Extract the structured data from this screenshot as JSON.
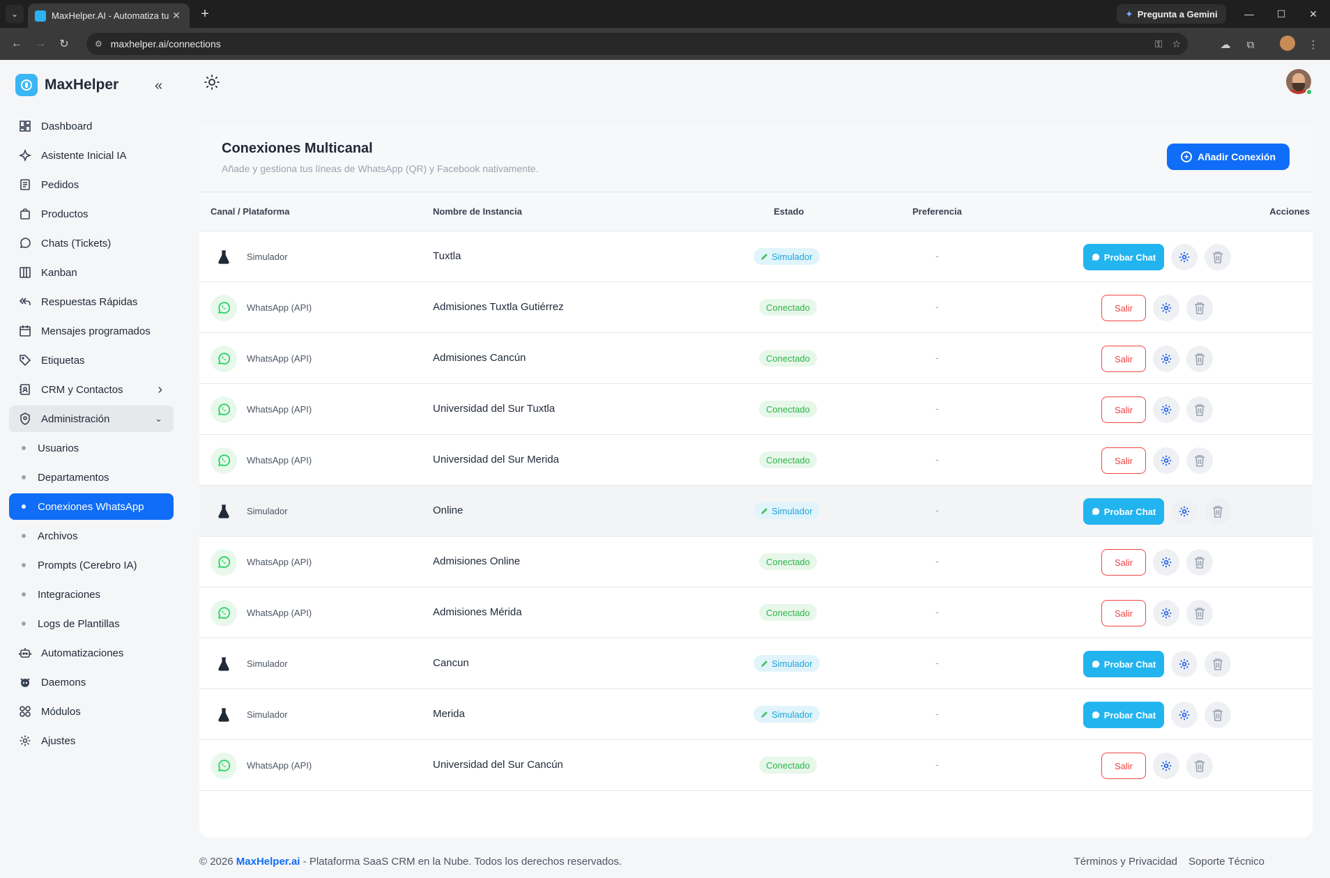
{
  "browser": {
    "tab_title": "MaxHelper.AI - Automatiza tu n",
    "gemini_label": "Pregunta a Gemini",
    "url": "maxhelper.ai/connections"
  },
  "sidebar": {
    "brand": "MaxHelper",
    "items": [
      {
        "label": "Dashboard",
        "icon": "dashboard-icon"
      },
      {
        "label": "Asistente Inicial IA",
        "icon": "sparkle-icon"
      },
      {
        "label": "Pedidos",
        "icon": "document-icon"
      },
      {
        "label": "Productos",
        "icon": "bag-icon"
      },
      {
        "label": "Chats (Tickets)",
        "icon": "whatsapp-icon"
      },
      {
        "label": "Kanban",
        "icon": "kanban-icon"
      },
      {
        "label": "Respuestas Rápidas",
        "icon": "reply-all-icon"
      },
      {
        "label": "Mensajes programados",
        "icon": "calendar-icon"
      },
      {
        "label": "Etiquetas",
        "icon": "tag-icon"
      },
      {
        "label": "CRM y Contactos",
        "icon": "contacts-icon"
      },
      {
        "label": "Administración",
        "icon": "shield-user-icon"
      }
    ],
    "admin_sub": [
      "Usuarios",
      "Departamentos",
      "Conexiones WhatsApp",
      "Archivos",
      "Prompts (Cerebro IA)",
      "Integraciones",
      "Logs de Plantillas"
    ],
    "bottom_items": [
      {
        "label": "Automatizaciones",
        "icon": "robot-icon"
      },
      {
        "label": "Daemons",
        "icon": "daemon-icon"
      },
      {
        "label": "Módulos",
        "icon": "modules-icon"
      },
      {
        "label": "Ajustes",
        "icon": "gear-icon"
      }
    ]
  },
  "page": {
    "title": "Conexiones Multicanal",
    "subtitle": "Añade y gestiona tus líneas de WhatsApp (QR) y Facebook nativamente.",
    "add_button": "Añadir Conexión"
  },
  "table": {
    "headers": {
      "canal": "Canal / Plataforma",
      "nombre": "Nombre de Instancia",
      "estado": "Estado",
      "preferencia": "Preferencia",
      "acciones": "Acciones"
    },
    "rows": [
      {
        "platform": "Simulador",
        "type": "sim",
        "name": "Tuxtla",
        "status": "Simulador",
        "pref": "-",
        "action": "Probar Chat"
      },
      {
        "platform": "WhatsApp (API)",
        "type": "wa",
        "name": "Admisiones Tuxtla Gutiérrez",
        "status": "Conectado",
        "pref": "-",
        "action": "Salir"
      },
      {
        "platform": "WhatsApp (API)",
        "type": "wa",
        "name": "Admisiones Cancún",
        "status": "Conectado",
        "pref": "-",
        "action": "Salir"
      },
      {
        "platform": "WhatsApp (API)",
        "type": "wa",
        "name": "Universidad del Sur Tuxtla",
        "status": "Conectado",
        "pref": "-",
        "action": "Salir"
      },
      {
        "platform": "WhatsApp (API)",
        "type": "wa",
        "name": "Universidad del Sur Merida",
        "status": "Conectado",
        "pref": "-",
        "action": "Salir"
      },
      {
        "platform": "Simulador",
        "type": "sim",
        "name": "Online",
        "status": "Simulador",
        "pref": "-",
        "action": "Probar Chat"
      },
      {
        "platform": "WhatsApp (API)",
        "type": "wa",
        "name": "Admisiones Online",
        "status": "Conectado",
        "pref": "-",
        "action": "Salir"
      },
      {
        "platform": "WhatsApp (API)",
        "type": "wa",
        "name": "Admisiones Mérida",
        "status": "Conectado",
        "pref": "-",
        "action": "Salir"
      },
      {
        "platform": "Simulador",
        "type": "sim",
        "name": "Cancun",
        "status": "Simulador",
        "pref": "-",
        "action": "Probar Chat"
      },
      {
        "platform": "Simulador",
        "type": "sim",
        "name": "Merida",
        "status": "Simulador",
        "pref": "-",
        "action": "Probar Chat"
      },
      {
        "platform": "WhatsApp (API)",
        "type": "wa",
        "name": "Universidad del Sur Cancún",
        "status": "Conectado",
        "pref": "-",
        "action": "Salir"
      }
    ]
  },
  "footer": {
    "prefix": "© 2026 ",
    "brand": "MaxHelper.ai",
    "suffix": " - Plataforma SaaS CRM en la Nube. Todos los derechos reservados.",
    "terms": "Términos y Privacidad",
    "support": "Soporte Técnico"
  },
  "colors": {
    "accent": "#0f6df7",
    "probar": "#22b4ee",
    "salir": "#ef4444",
    "connected": "#2db54a",
    "whatsapp": "#25d366"
  }
}
